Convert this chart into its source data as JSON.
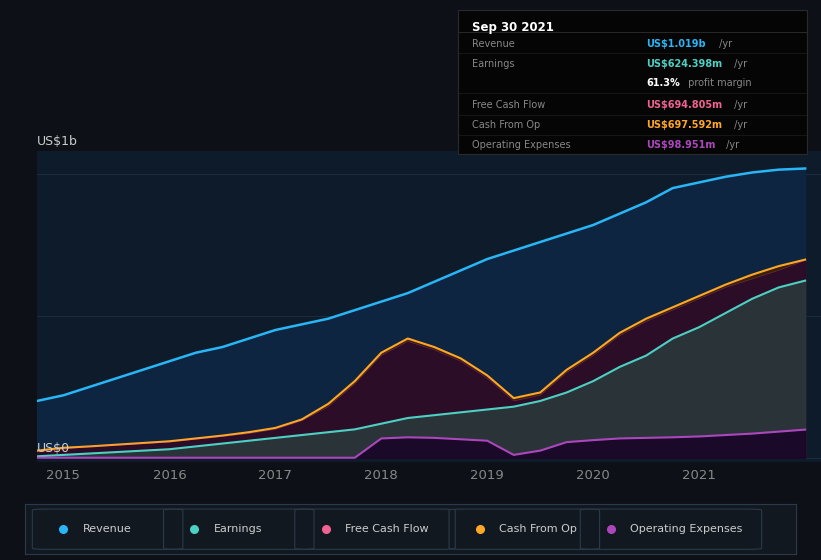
{
  "bg_color": "#0d1117",
  "plot_bg_color": "#0d1b2a",
  "title": "Sep 30 2021",
  "ylabel_top": "US$1b",
  "ylabel_bottom": "US$0",
  "x_ticks": [
    2015,
    2016,
    2017,
    2018,
    2019,
    2020,
    2021
  ],
  "years": [
    2014.75,
    2015.0,
    2015.25,
    2015.5,
    2015.75,
    2016.0,
    2016.25,
    2016.5,
    2016.75,
    2017.0,
    2017.25,
    2017.5,
    2017.75,
    2018.0,
    2018.25,
    2018.5,
    2018.75,
    2019.0,
    2019.25,
    2019.5,
    2019.75,
    2020.0,
    2020.25,
    2020.5,
    2020.75,
    2021.0,
    2021.25,
    2021.5,
    2021.75,
    2022.0
  ],
  "revenue": [
    0.2,
    0.22,
    0.25,
    0.28,
    0.31,
    0.34,
    0.37,
    0.39,
    0.42,
    0.45,
    0.47,
    0.49,
    0.52,
    0.55,
    0.58,
    0.62,
    0.66,
    0.7,
    0.73,
    0.76,
    0.79,
    0.82,
    0.86,
    0.9,
    0.95,
    0.97,
    0.99,
    1.005,
    1.015,
    1.019
  ],
  "free_cash_flow": [
    0.02,
    0.03,
    0.04,
    0.045,
    0.05,
    0.055,
    0.065,
    0.075,
    0.085,
    0.1,
    0.13,
    0.18,
    0.26,
    0.36,
    0.41,
    0.38,
    0.34,
    0.28,
    0.2,
    0.22,
    0.3,
    0.36,
    0.43,
    0.48,
    0.52,
    0.56,
    0.6,
    0.63,
    0.66,
    0.695
  ],
  "earnings": [
    0.005,
    0.01,
    0.015,
    0.02,
    0.025,
    0.03,
    0.04,
    0.05,
    0.06,
    0.07,
    0.08,
    0.09,
    0.1,
    0.12,
    0.14,
    0.15,
    0.16,
    0.17,
    0.18,
    0.2,
    0.23,
    0.27,
    0.32,
    0.36,
    0.42,
    0.46,
    0.51,
    0.56,
    0.6,
    0.624
  ],
  "cash_from_op": [
    0.025,
    0.035,
    0.04,
    0.046,
    0.052,
    0.058,
    0.068,
    0.078,
    0.09,
    0.105,
    0.135,
    0.19,
    0.27,
    0.37,
    0.42,
    0.39,
    0.35,
    0.29,
    0.21,
    0.23,
    0.31,
    0.37,
    0.44,
    0.49,
    0.53,
    0.57,
    0.61,
    0.645,
    0.675,
    0.698
  ],
  "op_expenses": [
    0.0,
    0.0,
    0.0,
    0.0,
    0.0,
    0.0,
    0.0,
    0.0,
    0.0,
    0.0,
    0.0,
    0.0,
    0.0,
    0.068,
    0.072,
    0.07,
    0.065,
    0.06,
    0.01,
    0.025,
    0.055,
    0.062,
    0.068,
    0.07,
    0.072,
    0.075,
    0.08,
    0.085,
    0.092,
    0.099
  ],
  "revenue_color": "#29b6f6",
  "earnings_color": "#4dd0c4",
  "fcf_color": "#f06292",
  "cash_op_color": "#ffa726",
  "op_exp_color": "#ab47bc",
  "tooltip_bg": "#050505",
  "tooltip_border": "#2a2a2a",
  "grid_color": "#1e2d3d",
  "legend_bg": "#111820",
  "legend_border": "#2a3a4a"
}
